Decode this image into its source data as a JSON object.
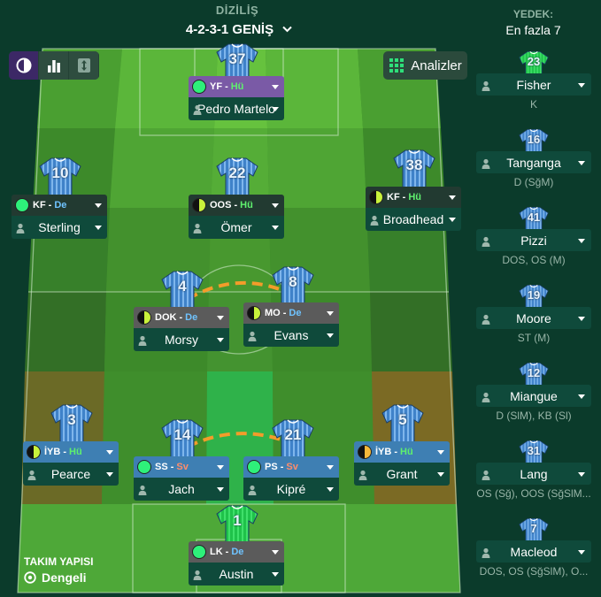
{
  "header": {
    "label": "DİZİLİŞ",
    "formation": "4-2-3-1 GENİŞ"
  },
  "toolbar": {
    "analyze_label": "Analizler"
  },
  "colors": {
    "pitch_dark": "#3d8a2a",
    "pitch_light": "#58b43a",
    "role_attack": "#5ff06e",
    "role_defend": "#6fc3ff",
    "role_support": "#ff8d6b"
  },
  "players": [
    {
      "id": "p37",
      "number": "37",
      "position": "YF",
      "sep": "-",
      "role": "Hü",
      "role_class": "c-hu",
      "name": "Pedro Martelo",
      "bar": "purple",
      "dot": "g"
    },
    {
      "id": "p10",
      "number": "10",
      "position": "KF",
      "sep": "-",
      "role": "De",
      "role_class": "c-de",
      "name": "Sterling",
      "bar": "dark",
      "dot": "g"
    },
    {
      "id": "p22",
      "number": "22",
      "position": "OOS",
      "sep": "-",
      "role": "Hü",
      "role_class": "c-hu",
      "name": "Ömer",
      "bar": "dark",
      "dot": "hy"
    },
    {
      "id": "p38",
      "number": "38",
      "position": "KF",
      "sep": "-",
      "role": "Hü",
      "role_class": "c-hu",
      "name": "Broadhead",
      "bar": "dark",
      "dot": "hy"
    },
    {
      "id": "p4",
      "number": "4",
      "position": "DOK",
      "sep": "-",
      "role": "De",
      "role_class": "c-de",
      "name": "Morsy",
      "bar": "grey",
      "dot": "hk"
    },
    {
      "id": "p8",
      "number": "8",
      "position": "MO",
      "sep": "-",
      "role": "De",
      "role_class": "c-de",
      "name": "Evans",
      "bar": "grey",
      "dot": "hy"
    },
    {
      "id": "p3",
      "number": "3",
      "position": "İYB",
      "sep": "-",
      "role": "Hü",
      "role_class": "c-hu",
      "name": "Pearce",
      "bar": "blue",
      "dot": "hy"
    },
    {
      "id": "p14",
      "number": "14",
      "position": "SS",
      "sep": "-",
      "role": "Sv",
      "role_class": "c-sv",
      "name": "Jach",
      "bar": "blue",
      "dot": "g"
    },
    {
      "id": "p21",
      "number": "21",
      "position": "PS",
      "sep": "-",
      "role": "Sv",
      "role_class": "c-sv",
      "name": "Kipré",
      "bar": "blue",
      "dot": "g"
    },
    {
      "id": "p5",
      "number": "5",
      "position": "İYB",
      "sep": "-",
      "role": "Hü",
      "role_class": "c-hu",
      "name": "Grant",
      "bar": "blue",
      "dot": "ho"
    },
    {
      "id": "p1",
      "number": "1",
      "position": "LK",
      "sep": "-",
      "role": "De",
      "role_class": "c-de",
      "name": "Austin",
      "bar": "grey",
      "dot": "g"
    }
  ],
  "subs": {
    "title": "YEDEK:",
    "max": "En fazla 7",
    "items": [
      {
        "number": "23",
        "name": "Fisher",
        "positions": "K",
        "gk": true
      },
      {
        "number": "16",
        "name": "Tanganga",
        "positions": "D (SğM)",
        "gk": false
      },
      {
        "number": "41",
        "name": "Pizzi",
        "positions": "DOS, OS (M)",
        "gk": false
      },
      {
        "number": "19",
        "name": "Moore",
        "positions": "ST (M)",
        "gk": false
      },
      {
        "number": "12",
        "name": "Miangue",
        "positions": "D (SlM), KB (Sl)",
        "gk": false
      },
      {
        "number": "31",
        "name": "Lang",
        "positions": "OS (Sğ), OOS (SğSlM...",
        "gk": false
      },
      {
        "number": "7",
        "name": "Macleod",
        "positions": "DOS, OS (SğSlM), O...",
        "gk": false
      }
    ]
  },
  "structure": {
    "title": "TAKIM YAPISI",
    "value": "Dengeli"
  }
}
